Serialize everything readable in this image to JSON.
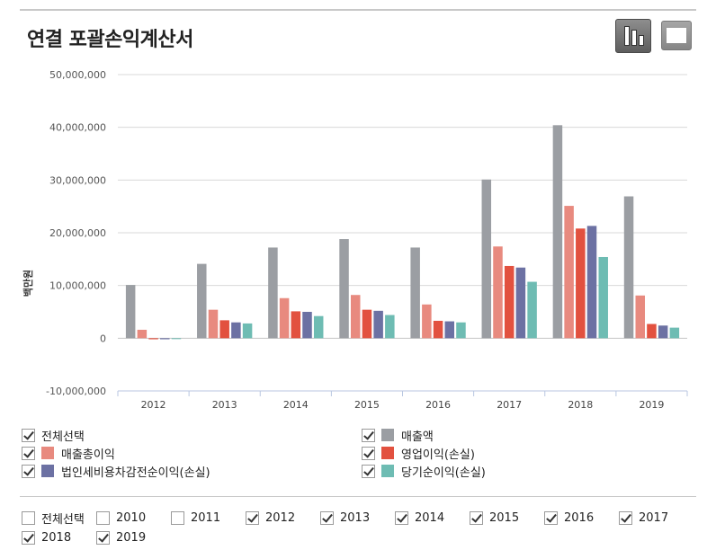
{
  "header": {
    "title": "연결 포괄손익계산서",
    "chart_view_icon": "bar-chart-icon",
    "table_view_icon": "table-grid-icon"
  },
  "chart_data": {
    "type": "bar",
    "title": "연결 포괄손익계산서",
    "ylabel": "백만원",
    "xlabel": "",
    "ylim": [
      -10000000,
      50000000
    ],
    "yticks": [
      -10000000,
      0,
      10000000,
      20000000,
      30000000,
      40000000,
      50000000
    ],
    "ytick_labels": [
      "-10,000,000",
      "0",
      "10,000,000",
      "20,000,000",
      "30,000,000",
      "40,000,000",
      "50,000,000"
    ],
    "categories": [
      "2012",
      "2013",
      "2014",
      "2015",
      "2016",
      "2017",
      "2018",
      "2019"
    ],
    "grid": true,
    "series": [
      {
        "name": "매출액",
        "color": "#9b9ea3",
        "values": [
          10100000,
          14100000,
          17200000,
          18800000,
          17200000,
          30100000,
          40400000,
          26900000
        ]
      },
      {
        "name": "매출총이익",
        "color": "#e88a7f",
        "values": [
          1600000,
          5400000,
          7600000,
          8200000,
          6400000,
          17400000,
          25100000,
          8100000
        ]
      },
      {
        "name": "영업이익(손실)",
        "color": "#e2513f",
        "values": [
          -200000,
          3400000,
          5100000,
          5400000,
          3300000,
          13700000,
          20800000,
          2700000
        ]
      },
      {
        "name": "법인세비용차감전순이익(손실)",
        "color": "#6c71a3",
        "values": [
          -200000,
          3000000,
          5000000,
          5200000,
          3200000,
          13400000,
          21300000,
          2400000
        ]
      },
      {
        "name": "당기순이익(손실)",
        "color": "#6ebcb3",
        "values": [
          -100000,
          2800000,
          4200000,
          4400000,
          3000000,
          10700000,
          15400000,
          2000000
        ]
      }
    ]
  },
  "legend": {
    "select_all_label": "전체선택",
    "items": [
      {
        "label": "매출액",
        "color": "#9b9ea3"
      },
      {
        "label": "매출총이익",
        "color": "#e88a7f"
      },
      {
        "label": "영업이익(손실)",
        "color": "#e2513f"
      },
      {
        "label": "법인세비용차감전순이익(손실)",
        "color": "#6c71a3"
      },
      {
        "label": "당기순이익(손실)",
        "color": "#6ebcb3"
      }
    ]
  },
  "year_filter": {
    "select_all_label": "전체선택",
    "select_all_checked": false,
    "years": [
      {
        "label": "2010",
        "checked": false
      },
      {
        "label": "2011",
        "checked": false
      },
      {
        "label": "2012",
        "checked": true
      },
      {
        "label": "2013",
        "checked": true
      },
      {
        "label": "2014",
        "checked": true
      },
      {
        "label": "2015",
        "checked": true
      },
      {
        "label": "2016",
        "checked": true
      },
      {
        "label": "2017",
        "checked": true
      },
      {
        "label": "2018",
        "checked": true
      },
      {
        "label": "2019",
        "checked": true
      }
    ]
  }
}
